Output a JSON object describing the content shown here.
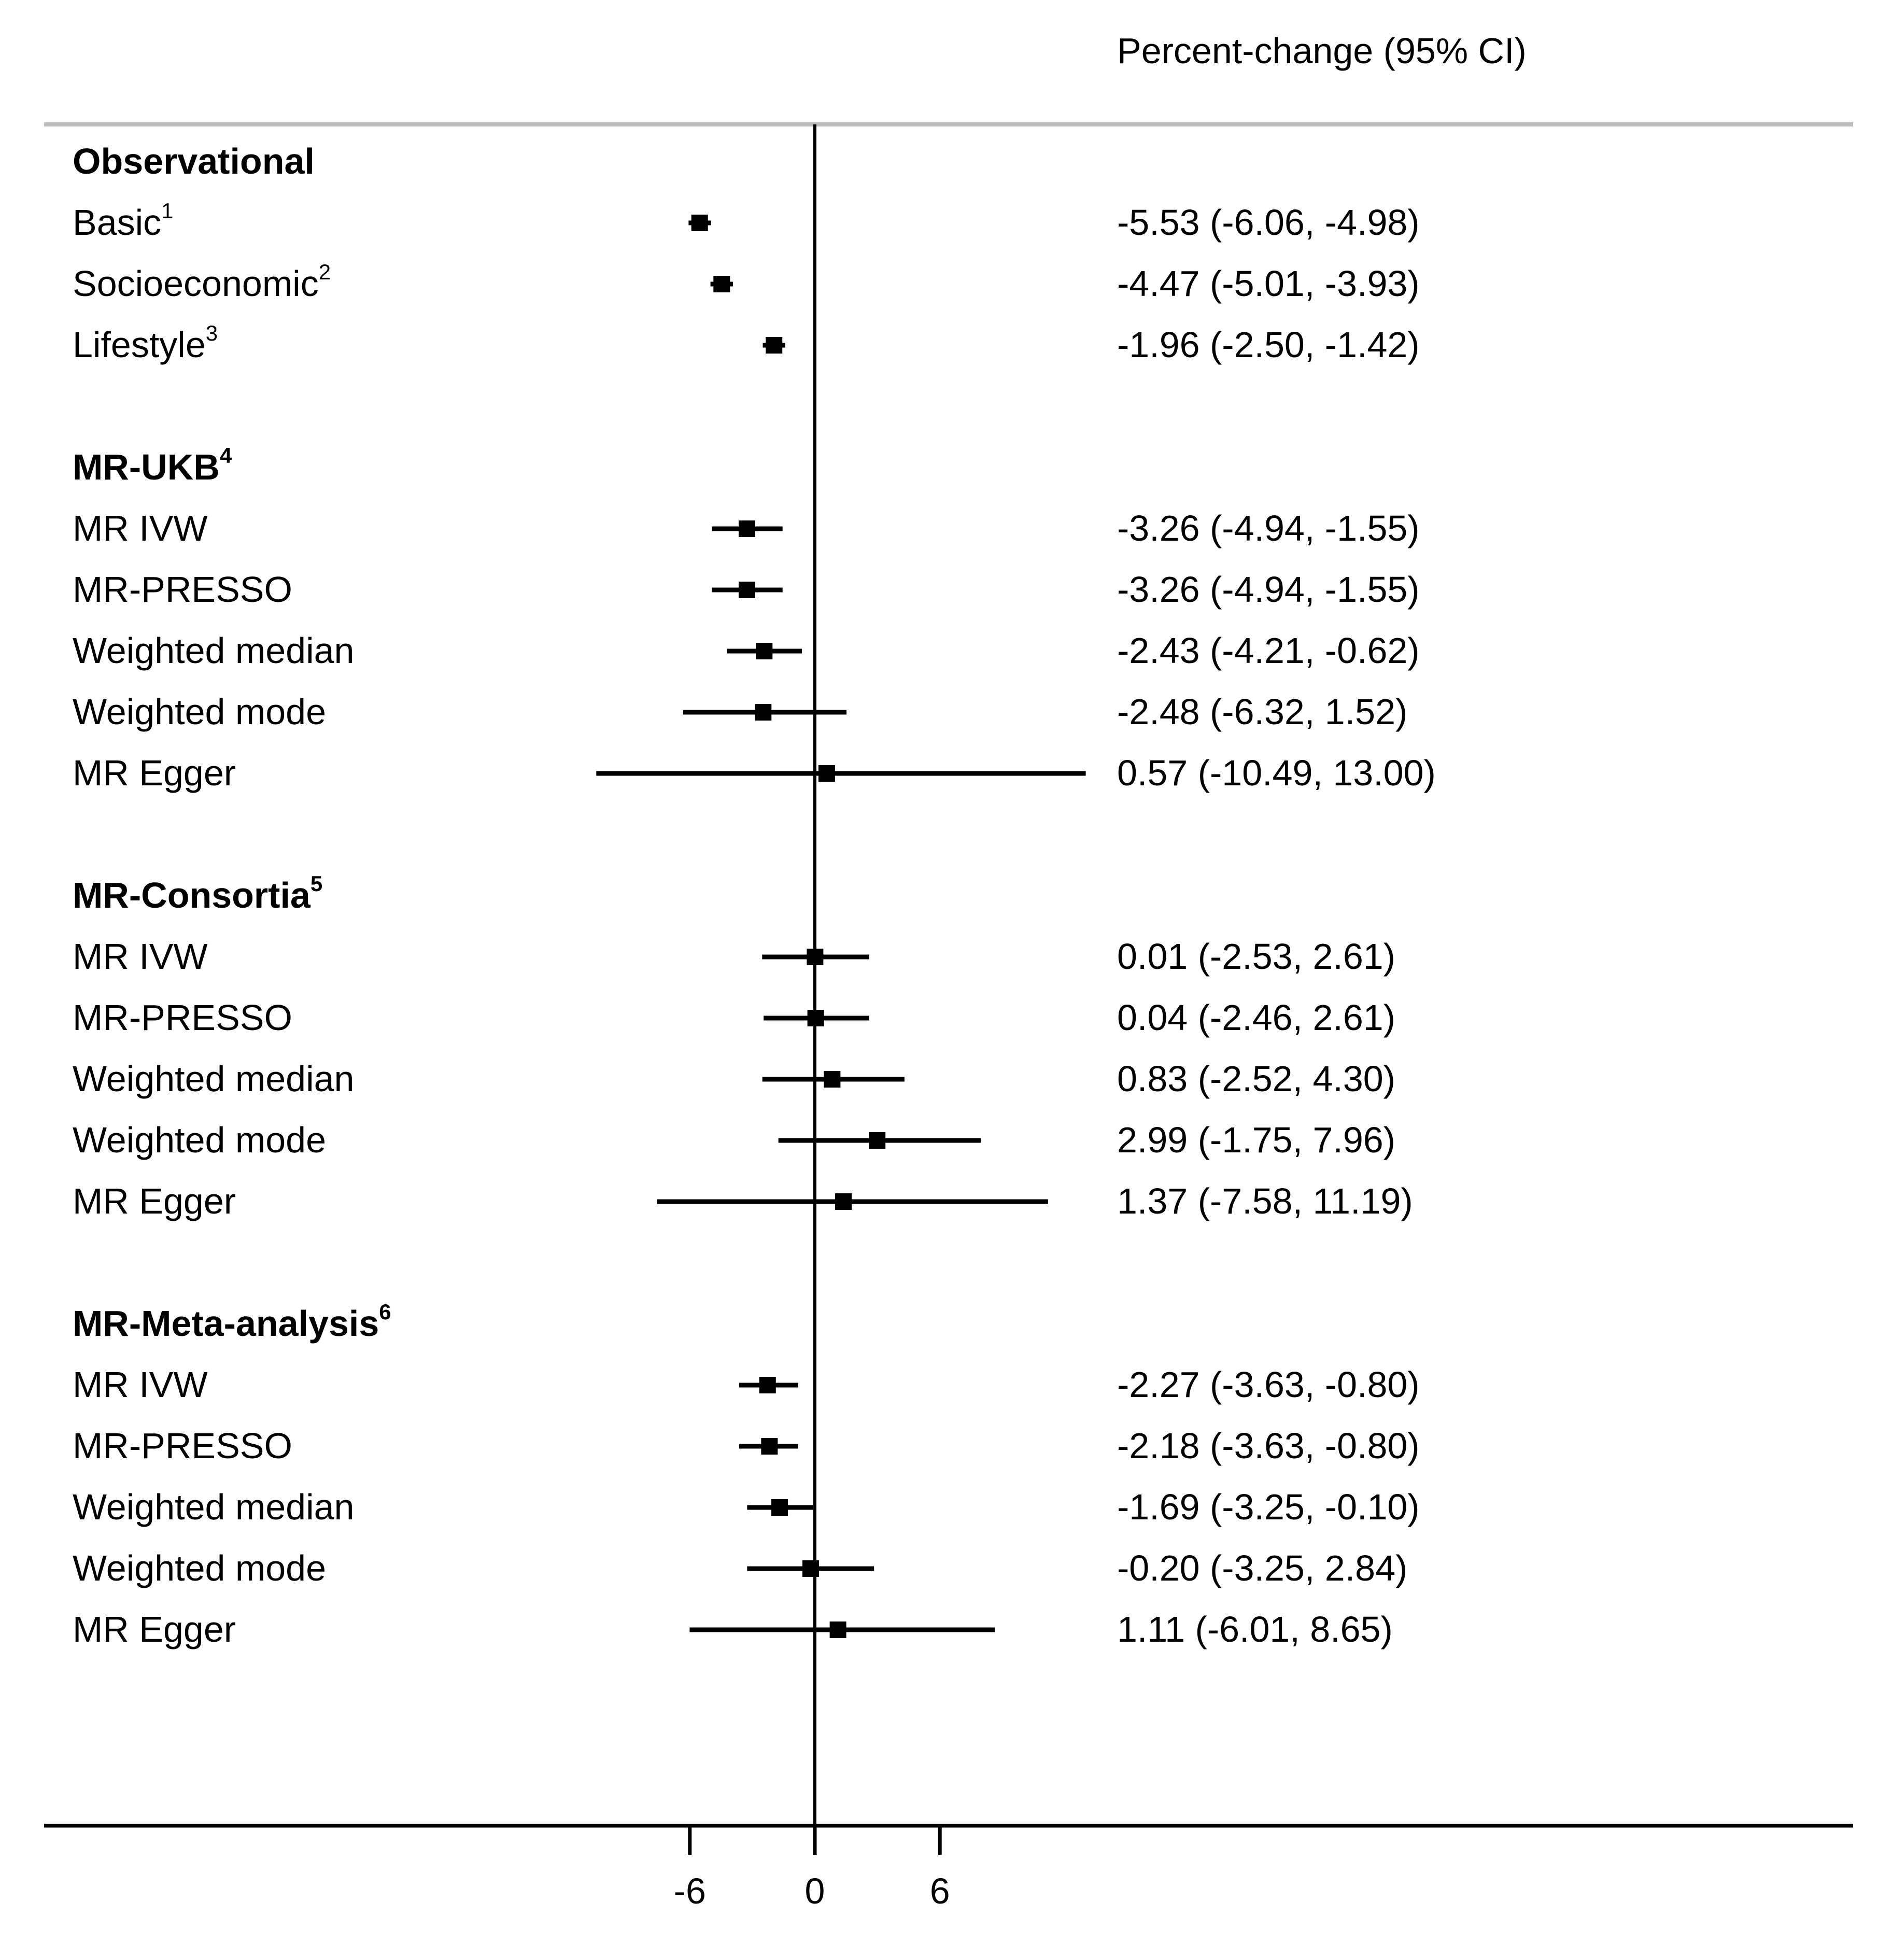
{
  "chart_data": {
    "type": "forest",
    "header": "Percent-change (95% CI)",
    "x_ticks": [
      "-6",
      "0",
      "6"
    ],
    "x_tick_values": [
      -6,
      0,
      6
    ],
    "null_line": 0,
    "groups": [
      {
        "name": "Observational",
        "superscript": "",
        "rows": [
          {
            "label": "Basic",
            "sup": "1",
            "estimate": -5.53,
            "lo": -6.06,
            "hi": -4.98,
            "text": "-5.53 (-6.06, -4.98)"
          },
          {
            "label": "Socioeconomic",
            "sup": "2",
            "estimate": -4.47,
            "lo": -5.01,
            "hi": -3.93,
            "text": "-4.47 (-5.01, -3.93)"
          },
          {
            "label": "Lifestyle",
            "sup": "3",
            "estimate": -1.96,
            "lo": -2.5,
            "hi": -1.42,
            "text": "-1.96 (-2.50, -1.42)"
          }
        ]
      },
      {
        "name": "MR-UKB",
        "superscript": "4",
        "rows": [
          {
            "label": "MR IVW",
            "sup": "",
            "estimate": -3.26,
            "lo": -4.94,
            "hi": -1.55,
            "text": "-3.26 (-4.94, -1.55)"
          },
          {
            "label": "MR-PRESSO",
            "sup": "",
            "estimate": -3.26,
            "lo": -4.94,
            "hi": -1.55,
            "text": "-3.26 (-4.94, -1.55)"
          },
          {
            "label": "Weighted median",
            "sup": "",
            "estimate": -2.43,
            "lo": -4.21,
            "hi": -0.62,
            "text": "-2.43 (-4.21, -0.62)"
          },
          {
            "label": "Weighted mode",
            "sup": "",
            "estimate": -2.48,
            "lo": -6.32,
            "hi": 1.52,
            "text": "-2.48 (-6.32, 1.52)"
          },
          {
            "label": "MR Egger",
            "sup": "",
            "estimate": 0.57,
            "lo": -10.49,
            "hi": 13.0,
            "text": "0.57 (-10.49, 13.00)"
          }
        ]
      },
      {
        "name": "MR-Consortia",
        "superscript": "5",
        "rows": [
          {
            "label": "MR IVW",
            "sup": "",
            "estimate": 0.01,
            "lo": -2.53,
            "hi": 2.61,
            "text": "0.01 (-2.53, 2.61)"
          },
          {
            "label": "MR-PRESSO",
            "sup": "",
            "estimate": 0.04,
            "lo": -2.46,
            "hi": 2.61,
            "text": "0.04 (-2.46, 2.61)"
          },
          {
            "label": "Weighted median",
            "sup": "",
            "estimate": 0.83,
            "lo": -2.52,
            "hi": 4.3,
            "text": "0.83 (-2.52, 4.30)"
          },
          {
            "label": "Weighted mode",
            "sup": "",
            "estimate": 2.99,
            "lo": -1.75,
            "hi": 7.96,
            "text": "2.99 (-1.75, 7.96)"
          },
          {
            "label": "MR Egger",
            "sup": "",
            "estimate": 1.37,
            "lo": -7.58,
            "hi": 11.19,
            "text": "1.37 (-7.58, 11.19)"
          }
        ]
      },
      {
        "name": "MR-Meta-analysis",
        "superscript": "6",
        "rows": [
          {
            "label": "MR IVW",
            "sup": "",
            "estimate": -2.27,
            "lo": -3.63,
            "hi": -0.8,
            "text": "-2.27 (-3.63, -0.80)"
          },
          {
            "label": "MR-PRESSO",
            "sup": "",
            "estimate": -2.18,
            "lo": -3.63,
            "hi": -0.8,
            "text": "-2.18 (-3.63, -0.80)"
          },
          {
            "label": "Weighted median",
            "sup": "",
            "estimate": -1.69,
            "lo": -3.25,
            "hi": -0.1,
            "text": "-1.69 (-3.25, -0.10)"
          },
          {
            "label": "Weighted mode",
            "sup": "",
            "estimate": -0.2,
            "lo": -3.25,
            "hi": 2.84,
            "text": "-0.20 (-3.25, 2.84)"
          },
          {
            "label": "MR Egger",
            "sup": "",
            "estimate": 1.11,
            "lo": -6.01,
            "hi": 8.65,
            "text": "1.11 (-6.01, 8.65)"
          }
        ]
      }
    ]
  }
}
